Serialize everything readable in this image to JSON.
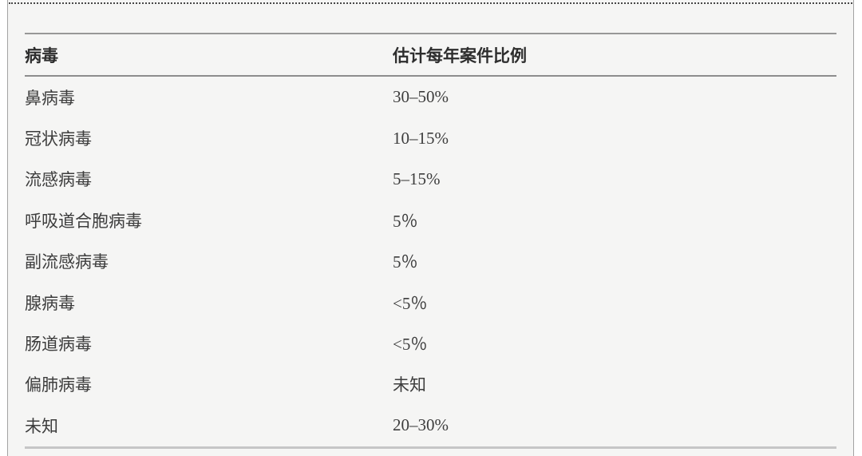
{
  "page": {
    "outer_background": "#ffffff",
    "content_background": "#f5f5f4",
    "divider_style": "dotted",
    "text_color": "#3d3d3d",
    "header_text_color": "#2d2d2d",
    "rule_color_dark": "#8d8d8d",
    "rule_color_light": "#c6c6c6"
  },
  "table": {
    "headers": [
      "病毒",
      "估计每年案件比例"
    ],
    "rows": [
      {
        "virus": "鼻病毒",
        "proportion": "30–50%"
      },
      {
        "virus": "冠状病毒",
        "proportion": "10–15%"
      },
      {
        "virus": "流感病毒",
        "proportion": "5–15%"
      },
      {
        "virus": "呼吸道合胞病毒",
        "proportion": "5％"
      },
      {
        "virus": "副流感病毒",
        "proportion": "5％"
      },
      {
        "virus": "腺病毒",
        "proportion": "<5％"
      },
      {
        "virus": "肠道病毒",
        "proportion": "<5％"
      },
      {
        "virus": "偏肺病毒",
        "proportion": "未知"
      },
      {
        "virus": "未知",
        "proportion": "20–30%"
      }
    ]
  }
}
